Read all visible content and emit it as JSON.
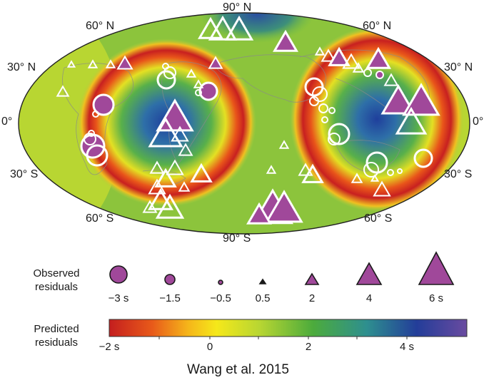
{
  "graticule_labels": {
    "lat_60n_left": "60° N",
    "lat_60n_right": "60° N",
    "lat_30n_left": "30° N",
    "lat_30n_right": "30° N",
    "lat_0_left": "0°",
    "lat_0_right": "0°",
    "lat_30s_left": "30° S",
    "lat_30s_right": "30° S",
    "lat_60s_left": "60° S",
    "lat_60s_right": "60° S",
    "north_pole": "90° N",
    "south_pole": "90° S"
  },
  "legend": {
    "observed_line1": "Observed",
    "observed_line2": "residuals",
    "observed_items": [
      "−3 s",
      "−1.5",
      "−0.5",
      "0.5",
      "2",
      "4",
      "6 s"
    ],
    "predicted_line1": "Predicted",
    "predicted_line2": "residuals",
    "colorbar_ticks": [
      "−2 s",
      "0",
      "2",
      "4 s"
    ],
    "colorbar_range": [
      -2,
      5
    ]
  },
  "credit": "Wang et al. 2015",
  "colors": {
    "positive_marker_fill": "#a0489a",
    "marker_outline": "#ffffff",
    "legend_outline": "#1a1a1a",
    "scale": [
      "#c41e1e",
      "#e85a1a",
      "#f5d21a",
      "#b8d632",
      "#4cab3c",
      "#2e8f8f",
      "#233d99",
      "#6a4ba0"
    ]
  }
}
